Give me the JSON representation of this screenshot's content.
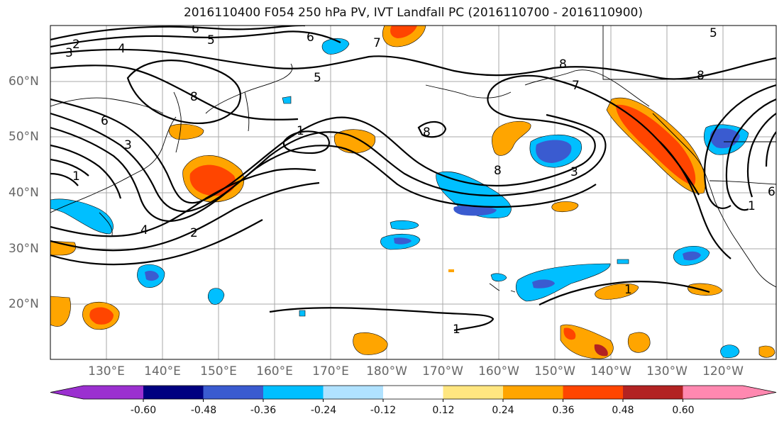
{
  "title": "2016110400 F054 250 hPa PV, IVT Landfall PC (2016110700 - 2016110900)",
  "lon_labels": [
    "130°E",
    "140°E",
    "150°E",
    "160°E",
    "170°E",
    "180°W",
    "170°W",
    "160°W",
    "150°W",
    "140°W",
    "130°W",
    "120°W"
  ],
  "lat_labels": [
    "60°N",
    "50°N",
    "40°N",
    "30°N",
    "20°N"
  ],
  "contour_labels": [
    "2",
    "3",
    "4",
    "6",
    "5",
    "6",
    "7",
    "8",
    "5",
    "8",
    "7",
    "1",
    "8",
    "6",
    "1",
    "3",
    "4",
    "2",
    "8",
    "3",
    "1",
    "1",
    "5",
    "8",
    "6",
    "1"
  ],
  "colorbar": {
    "tick_labels": [
      "-0.60",
      "-0.48",
      "-0.36",
      "-0.24",
      "-0.12",
      "0.12",
      "0.24",
      "0.36",
      "0.48",
      "0.60"
    ],
    "colors": [
      "#9b30d0",
      "#000080",
      "#3a5bd0",
      "#00bfff",
      "#b0e2ff",
      "#ffffff",
      "#ffe680",
      "#ffa500",
      "#ff4500",
      "#b22222",
      "#ff88b0"
    ]
  }
}
